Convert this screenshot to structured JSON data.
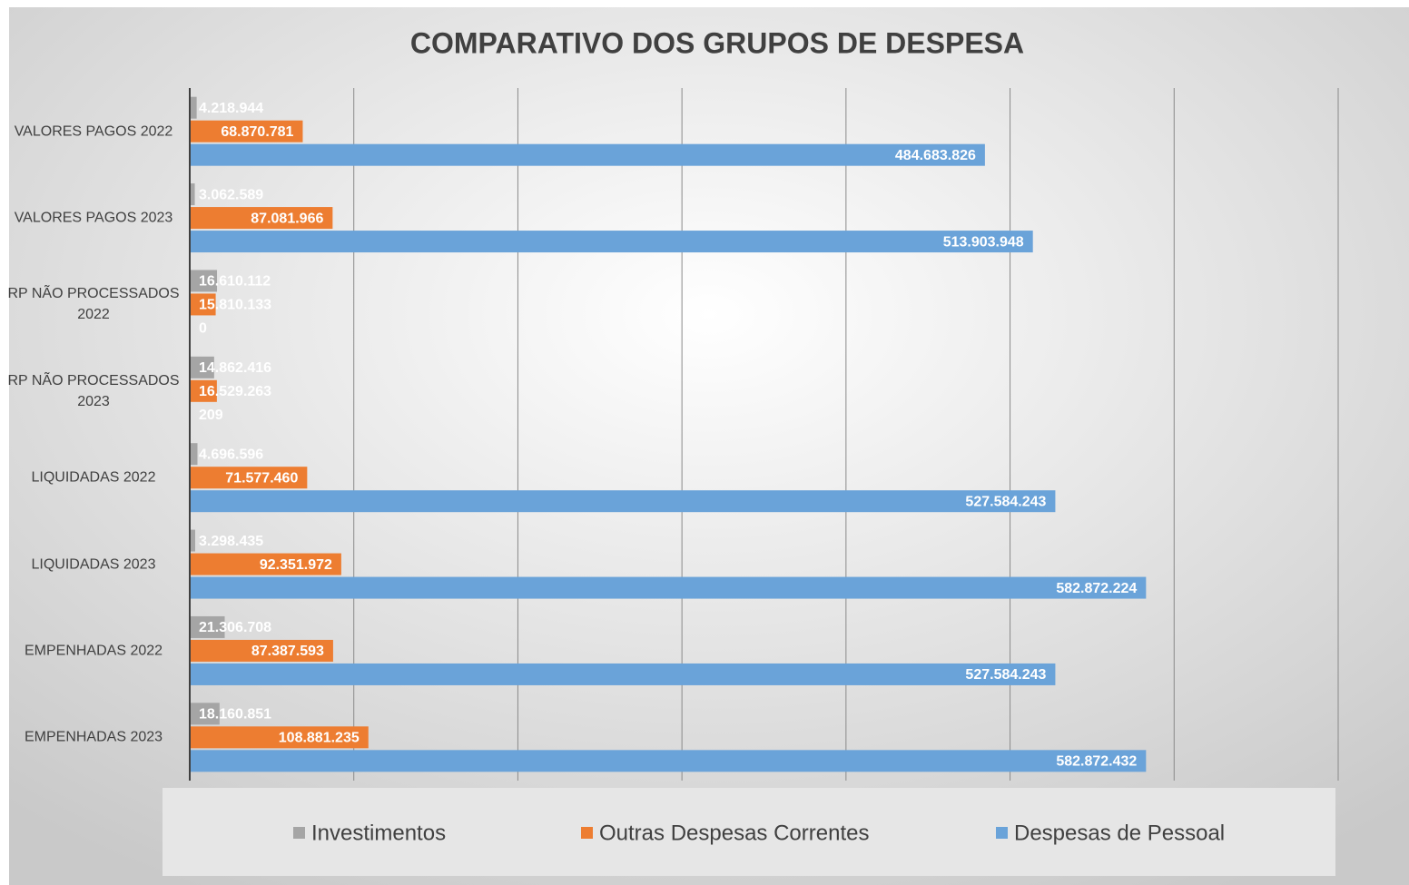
{
  "chart_data": {
    "type": "bar",
    "orientation": "horizontal",
    "title": "COMPARATIVO DOS GRUPOS DE DESPESA",
    "categories": [
      "VALORES PAGOS 2022",
      "VALORES PAGOS 2023",
      "RP NÃO PROCESSADOS 2022",
      "RP NÃO PROCESSADOS 2023",
      "LIQUIDADAS 2022",
      "LIQUIDADAS 2023",
      "EMPENHADAS 2022",
      "EMPENHADAS 2023"
    ],
    "series": [
      {
        "name": "Investimentos",
        "color": "#a5a5a5",
        "values": [
          4218944,
          3062589,
          16610112,
          14862416,
          4696596,
          3298435,
          21306708,
          18160851
        ],
        "value_labels": [
          "4.218.944",
          "3.062.589",
          "16.610.112",
          "14.862.416",
          "4.696.596",
          "3.298.435",
          "21.306.708",
          "18.160.851"
        ]
      },
      {
        "name": "Outras Despesas Correntes",
        "color": "#ed7d31",
        "values": [
          68870781,
          87081966,
          15810133,
          16529263,
          71577460,
          92351972,
          87387593,
          108881235
        ],
        "value_labels": [
          "68.870.781",
          "87.081.966",
          "15.810.133",
          "16.529.263",
          "71.577.460",
          "92.351.972",
          "87.387.593",
          "108.881.235"
        ]
      },
      {
        "name": "Despesas de Pessoal",
        "color": "#6aa3d9",
        "values": [
          484683826,
          513903948,
          0,
          209,
          527584243,
          582872224,
          527584243,
          582872432
        ],
        "value_labels": [
          "484.683.826",
          "513.903.948",
          "0",
          "209",
          "527.584.243",
          "582.872.224",
          "527.584.243",
          "582.872.432"
        ]
      }
    ],
    "xlim": [
      0,
      700000000
    ],
    "xticks": [
      0,
      100000000,
      200000000,
      300000000,
      400000000,
      500000000,
      600000000,
      700000000
    ],
    "grid": true,
    "legend": "bottom"
  }
}
